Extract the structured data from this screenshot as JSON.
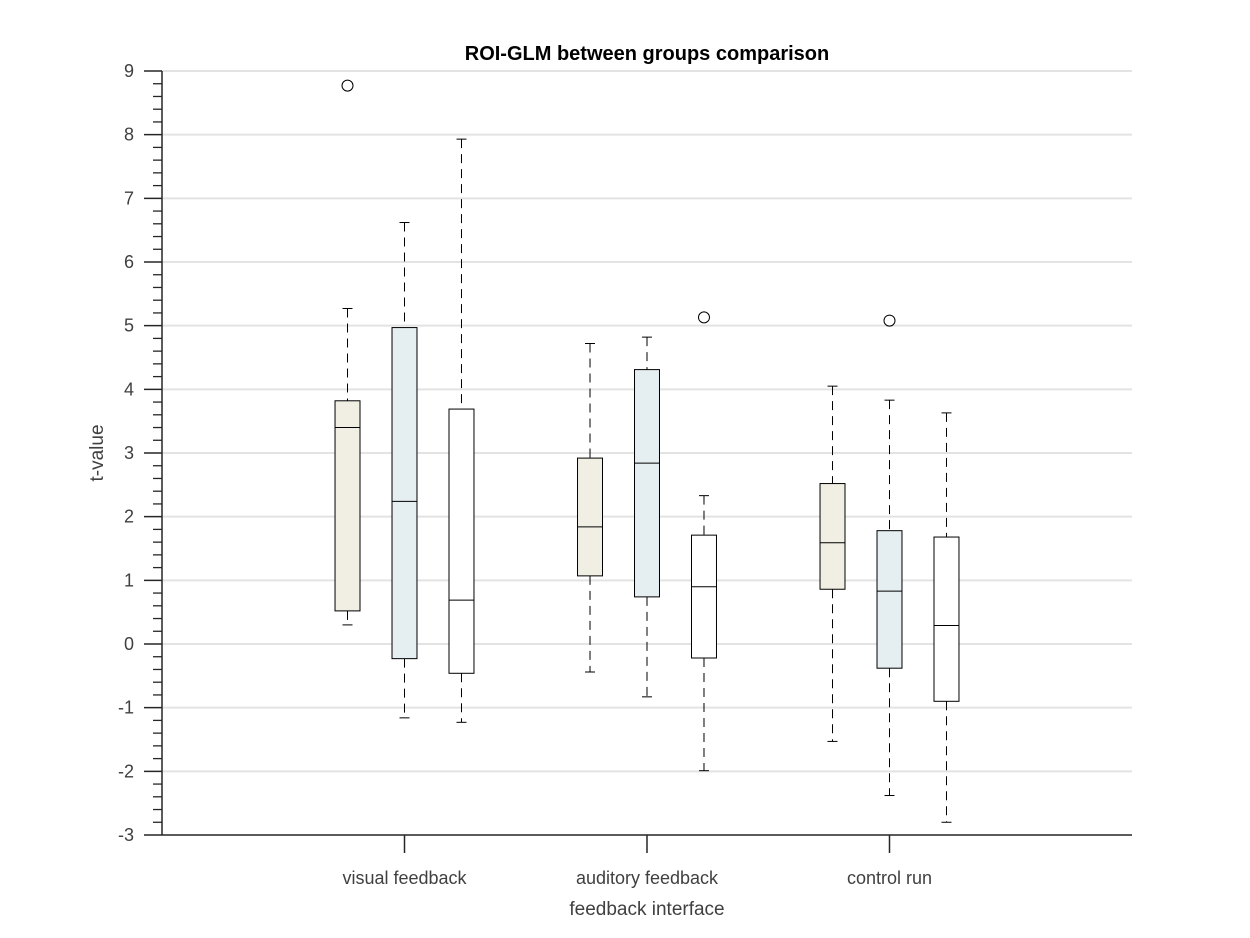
{
  "chart_data": {
    "type": "boxplot",
    "title": "ROI-GLM between groups comparison",
    "xlabel": "feedback interface",
    "ylabel": "t-value",
    "ylim": [
      -3,
      9
    ],
    "yticks": [
      "-3",
      "-2",
      "-1",
      "0",
      "1",
      "2",
      "3",
      "4",
      "5",
      "6",
      "7",
      "8",
      "9"
    ],
    "grid": "horizontal",
    "categories": [
      "visual feedback",
      "auditory feedback",
      "control run"
    ],
    "group_colors": [
      "#f1efe4",
      "#e5eef0",
      "#ffffff"
    ],
    "boxes": [
      [
        {
          "whisker_low": 0.3,
          "q1": 0.52,
          "median": 3.4,
          "q3": 3.82,
          "whisker_high": 5.27,
          "outliers": [
            8.77
          ]
        },
        {
          "whisker_low": -1.16,
          "q1": -0.23,
          "median": 2.24,
          "q3": 4.97,
          "whisker_high": 6.62,
          "outliers": []
        },
        {
          "whisker_low": -1.23,
          "q1": -0.46,
          "median": 0.69,
          "q3": 3.69,
          "whisker_high": 7.93,
          "outliers": []
        }
      ],
      [
        {
          "whisker_low": -0.44,
          "q1": 1.07,
          "median": 1.84,
          "q3": 2.92,
          "whisker_high": 4.72,
          "outliers": []
        },
        {
          "whisker_low": -0.83,
          "q1": 0.74,
          "median": 2.84,
          "q3": 4.31,
          "whisker_high": 4.82,
          "outliers": []
        },
        {
          "whisker_low": -1.99,
          "q1": -0.22,
          "median": 0.9,
          "q3": 1.71,
          "whisker_high": 2.33,
          "outliers": [
            5.13
          ]
        }
      ],
      [
        {
          "whisker_low": -1.53,
          "q1": 0.86,
          "median": 1.59,
          "q3": 2.52,
          "whisker_high": 4.05,
          "outliers": []
        },
        {
          "whisker_low": -2.38,
          "q1": -0.38,
          "median": 0.83,
          "q3": 1.78,
          "whisker_high": 3.83,
          "outliers": [
            5.08
          ]
        },
        {
          "whisker_low": -2.8,
          "q1": -0.9,
          "median": 0.29,
          "q3": 1.68,
          "whisker_high": 3.63,
          "outliers": []
        }
      ]
    ]
  }
}
